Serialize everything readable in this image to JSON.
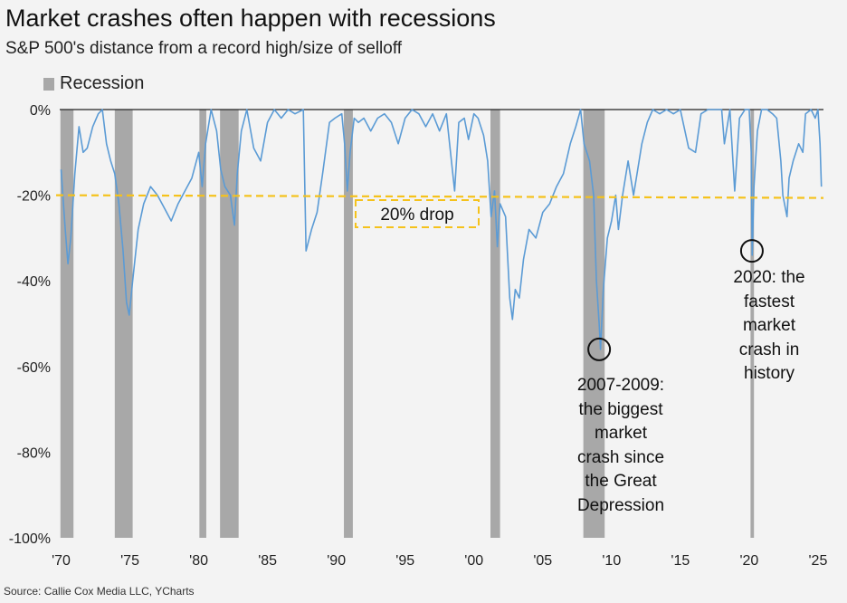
{
  "title": "Market crashes often happen with recessions",
  "subtitle": "S&P 500's distance from a record high/size of selloff",
  "legend": {
    "recession_label": "Recession"
  },
  "source": "Source: Callie Cox Media LLC, YCharts",
  "colors": {
    "line": "#5b9bd5",
    "recession": "#a8a8a8",
    "threshold": "#f5c21b",
    "background": "#f3f3f3",
    "zero_line": "#222222"
  },
  "chart_data": {
    "type": "line",
    "title": "Market crashes often happen with recessions",
    "subtitle": "S&P 500's distance from a record high/size of selloff",
    "xlim": [
      1969.9,
      2025.4
    ],
    "ylim": [
      -100,
      0
    ],
    "x_ticks": [
      1970,
      1975,
      1980,
      1985,
      1990,
      1995,
      2000,
      2005,
      2010,
      2015,
      2020,
      2025
    ],
    "x_tick_labels": [
      "'70",
      "'75",
      "'80",
      "'85",
      "'90",
      "'95",
      "'00",
      "'05",
      "'10",
      "'15",
      "'20",
      "'25"
    ],
    "y_ticks": [
      0,
      -20,
      -40,
      -60,
      -80,
      -100
    ],
    "y_tick_labels": [
      "0%",
      "-20%",
      "-40%",
      "-60%",
      "-80%",
      "-100%"
    ],
    "grid": false,
    "legend_position": "top-left",
    "recessions": [
      {
        "start": 1969.95,
        "end": 1970.9
      },
      {
        "start": 1973.9,
        "end": 1975.2
      },
      {
        "start": 1980.05,
        "end": 1980.55
      },
      {
        "start": 1981.55,
        "end": 1982.9
      },
      {
        "start": 1990.55,
        "end": 1991.2
      },
      {
        "start": 2001.2,
        "end": 2001.9
      },
      {
        "start": 2007.95,
        "end": 2009.5
      },
      {
        "start": 2020.1,
        "end": 2020.35
      }
    ],
    "threshold_line": {
      "y": -20,
      "label": "20% drop"
    },
    "series": [
      {
        "values": [
          [
            1970.0,
            -14
          ],
          [
            1970.3,
            -28
          ],
          [
            1970.5,
            -36
          ],
          [
            1970.7,
            -30
          ],
          [
            1971.0,
            -15
          ],
          [
            1971.3,
            -4
          ],
          [
            1971.6,
            -10
          ],
          [
            1971.9,
            -9
          ],
          [
            1972.3,
            -4
          ],
          [
            1972.7,
            -1
          ],
          [
            1973.0,
            0
          ],
          [
            1973.3,
            -8
          ],
          [
            1973.6,
            -12
          ],
          [
            1973.9,
            -15
          ],
          [
            1974.2,
            -22
          ],
          [
            1974.5,
            -33
          ],
          [
            1974.75,
            -45
          ],
          [
            1974.95,
            -48
          ],
          [
            1975.2,
            -40
          ],
          [
            1975.6,
            -28
          ],
          [
            1976.0,
            -22
          ],
          [
            1976.5,
            -18
          ],
          [
            1977.0,
            -20
          ],
          [
            1977.5,
            -23
          ],
          [
            1978.0,
            -26
          ],
          [
            1978.5,
            -22
          ],
          [
            1979.0,
            -19
          ],
          [
            1979.5,
            -16
          ],
          [
            1980.0,
            -10
          ],
          [
            1980.25,
            -18
          ],
          [
            1980.5,
            -8
          ],
          [
            1980.9,
            0
          ],
          [
            1981.3,
            -5
          ],
          [
            1981.6,
            -14
          ],
          [
            1981.9,
            -18
          ],
          [
            1982.3,
            -20
          ],
          [
            1982.6,
            -27
          ],
          [
            1982.8,
            -15
          ],
          [
            1983.1,
            -5
          ],
          [
            1983.5,
            0
          ],
          [
            1984.0,
            -9
          ],
          [
            1984.5,
            -12
          ],
          [
            1985.0,
            -3
          ],
          [
            1985.5,
            0
          ],
          [
            1986.0,
            -2
          ],
          [
            1986.5,
            0
          ],
          [
            1987.0,
            -1
          ],
          [
            1987.6,
            0
          ],
          [
            1987.8,
            -33
          ],
          [
            1988.2,
            -28
          ],
          [
            1988.6,
            -24
          ],
          [
            1989.0,
            -15
          ],
          [
            1989.5,
            -3
          ],
          [
            1989.9,
            -2
          ],
          [
            1990.4,
            -1
          ],
          [
            1990.6,
            -8
          ],
          [
            1990.8,
            -19
          ],
          [
            1991.0,
            -10
          ],
          [
            1991.3,
            -2
          ],
          [
            1991.6,
            -3
          ],
          [
            1992.0,
            -2
          ],
          [
            1992.5,
            -5
          ],
          [
            1993.0,
            -2
          ],
          [
            1993.5,
            -1
          ],
          [
            1994.0,
            -3
          ],
          [
            1994.5,
            -8
          ],
          [
            1995.0,
            -2
          ],
          [
            1995.5,
            0
          ],
          [
            1996.0,
            -1
          ],
          [
            1996.5,
            -4
          ],
          [
            1997.0,
            -1
          ],
          [
            1997.5,
            -5
          ],
          [
            1998.0,
            -1
          ],
          [
            1998.6,
            -19
          ],
          [
            1998.9,
            -3
          ],
          [
            1999.3,
            -2
          ],
          [
            1999.6,
            -7
          ],
          [
            2000.0,
            -1
          ],
          [
            2000.3,
            -2
          ],
          [
            2000.7,
            -6
          ],
          [
            2001.0,
            -12
          ],
          [
            2001.25,
            -25
          ],
          [
            2001.5,
            -19
          ],
          [
            2001.7,
            -32
          ],
          [
            2001.9,
            -22
          ],
          [
            2002.3,
            -25
          ],
          [
            2002.6,
            -44
          ],
          [
            2002.8,
            -49
          ],
          [
            2003.0,
            -42
          ],
          [
            2003.3,
            -44
          ],
          [
            2003.6,
            -35
          ],
          [
            2004.0,
            -28
          ],
          [
            2004.5,
            -30
          ],
          [
            2005.0,
            -24
          ],
          [
            2005.5,
            -22
          ],
          [
            2006.0,
            -18
          ],
          [
            2006.5,
            -15
          ],
          [
            2007.0,
            -8
          ],
          [
            2007.4,
            -4
          ],
          [
            2007.75,
            0
          ],
          [
            2008.0,
            -8
          ],
          [
            2008.4,
            -12
          ],
          [
            2008.7,
            -20
          ],
          [
            2008.9,
            -40
          ],
          [
            2009.1,
            -50
          ],
          [
            2009.2,
            -56
          ],
          [
            2009.4,
            -42
          ],
          [
            2009.7,
            -30
          ],
          [
            2010.0,
            -26
          ],
          [
            2010.3,
            -20
          ],
          [
            2010.5,
            -28
          ],
          [
            2010.8,
            -20
          ],
          [
            2011.2,
            -12
          ],
          [
            2011.6,
            -20
          ],
          [
            2011.8,
            -16
          ],
          [
            2012.2,
            -8
          ],
          [
            2012.6,
            -3
          ],
          [
            2013.0,
            0
          ],
          [
            2013.5,
            -1
          ],
          [
            2014.0,
            0
          ],
          [
            2014.5,
            -1
          ],
          [
            2015.0,
            0
          ],
          [
            2015.6,
            -9
          ],
          [
            2016.1,
            -10
          ],
          [
            2016.5,
            -1
          ],
          [
            2017.0,
            0
          ],
          [
            2017.5,
            0
          ],
          [
            2018.0,
            0
          ],
          [
            2018.2,
            -8
          ],
          [
            2018.6,
            0
          ],
          [
            2018.95,
            -19
          ],
          [
            2019.3,
            -2
          ],
          [
            2019.7,
            0
          ],
          [
            2020.0,
            0
          ],
          [
            2020.15,
            -10
          ],
          [
            2020.22,
            -34
          ],
          [
            2020.35,
            -18
          ],
          [
            2020.6,
            -5
          ],
          [
            2020.9,
            0
          ],
          [
            2021.3,
            0
          ],
          [
            2021.7,
            -1
          ],
          [
            2022.0,
            -2
          ],
          [
            2022.3,
            -12
          ],
          [
            2022.45,
            -20
          ],
          [
            2022.75,
            -25
          ],
          [
            2022.9,
            -16
          ],
          [
            2023.2,
            -12
          ],
          [
            2023.6,
            -8
          ],
          [
            2023.9,
            -10
          ],
          [
            2024.1,
            -1
          ],
          [
            2024.5,
            0
          ],
          [
            2024.8,
            -2
          ],
          [
            2025.0,
            0
          ],
          [
            2025.15,
            -8
          ],
          [
            2025.25,
            -18
          ]
        ]
      }
    ]
  },
  "annotations": [
    {
      "label": "2007-2009: the biggest market crash since the Great Depression",
      "lines": [
        "2007-2009:",
        "the biggest",
        "market",
        "crash since",
        "the Great",
        "Depression"
      ],
      "marker": {
        "x": 2009.1,
        "y": -56
      }
    },
    {
      "label": "2020: the fastest market crash in history",
      "lines": [
        "2020: the",
        "fastest",
        "market",
        "crash in",
        "history"
      ],
      "marker": {
        "x": 2020.2,
        "y": -33
      }
    }
  ]
}
